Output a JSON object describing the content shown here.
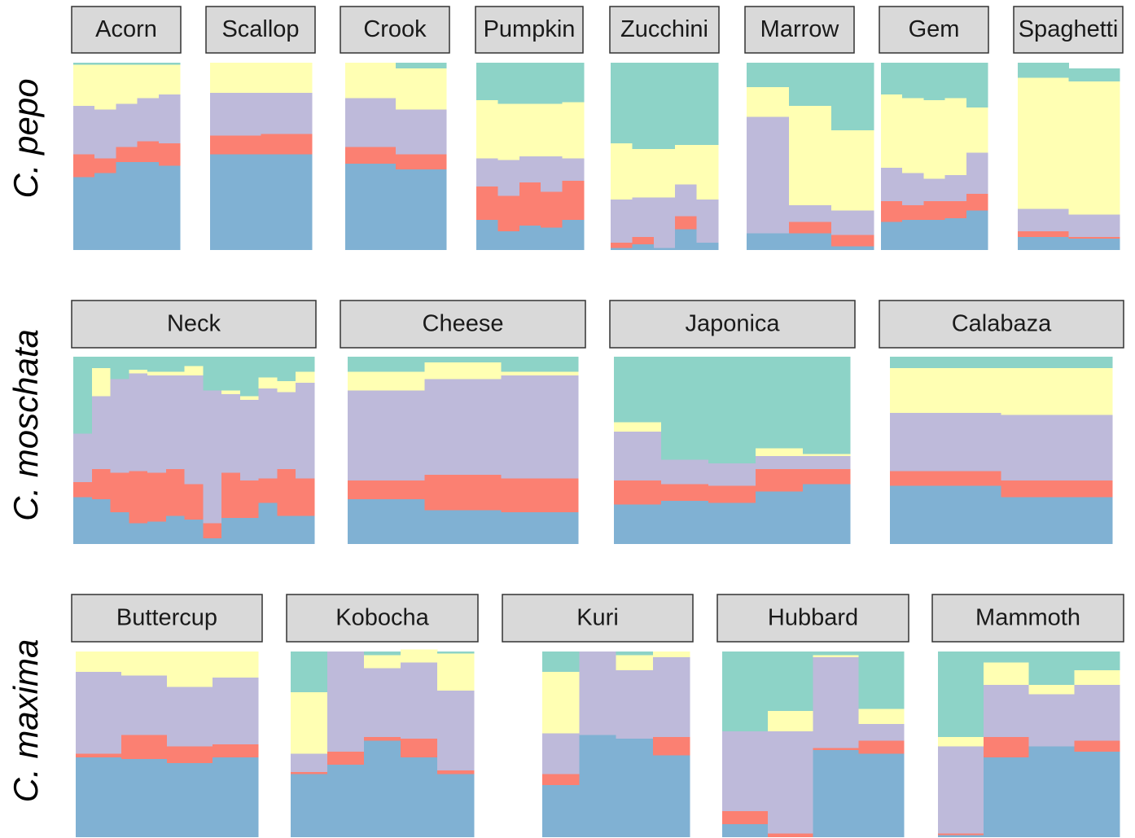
{
  "chart_data": {
    "type": "bar",
    "stacked": true,
    "colors": [
      "#80b1d3",
      "#fb8072",
      "#bebada",
      "#ffffb3",
      "#8dd3c7"
    ],
    "rows": [
      {
        "label": "C. pepo",
        "panels": [
          {
            "title": "Acorn",
            "bars": [
              [
                0.39,
                0.12,
                0.26,
                0.22,
                0.01
              ],
              [
                0.41,
                0.08,
                0.26,
                0.24,
                0.01
              ],
              [
                0.47,
                0.08,
                0.23,
                0.21,
                0.01
              ],
              [
                0.47,
                0.11,
                0.23,
                0.18,
                0.01
              ],
              [
                0.45,
                0.12,
                0.26,
                0.16,
                0.01
              ]
            ]
          },
          {
            "title": "Scallop",
            "bars": [
              [
                0.51,
                0.1,
                0.23,
                0.16,
                0
              ],
              [
                0.51,
                0.11,
                0.22,
                0.16,
                0
              ]
            ]
          },
          {
            "title": "Crook",
            "bars": [
              [
                0.46,
                0.09,
                0.26,
                0.19,
                0
              ],
              [
                0.43,
                0.08,
                0.24,
                0.22,
                0.03
              ]
            ]
          },
          {
            "title": "Pumpkin",
            "bars": [
              [
                0.16,
                0.18,
                0.15,
                0.31,
                0.2
              ],
              [
                0.1,
                0.19,
                0.19,
                0.3,
                0.22
              ],
              [
                0.13,
                0.23,
                0.14,
                0.28,
                0.22
              ],
              [
                0.12,
                0.19,
                0.19,
                0.28,
                0.22
              ],
              [
                0.16,
                0.21,
                0.12,
                0.3,
                0.21
              ]
            ]
          },
          {
            "title": "Zucchini",
            "bars": [
              [
                0.01,
                0.03,
                0.23,
                0.3,
                0.43
              ],
              [
                0.03,
                0.04,
                0.21,
                0.26,
                0.46
              ],
              [
                0.01,
                0,
                0.27,
                0.26,
                0.46
              ],
              [
                0.11,
                0.07,
                0.17,
                0.21,
                0.44
              ],
              [
                0.04,
                0,
                0.23,
                0.29,
                0.44
              ]
            ]
          },
          {
            "title": "Marrow",
            "bars": [
              [
                0.09,
                0,
                0.62,
                0.16,
                0.13
              ],
              [
                0.09,
                0.06,
                0.09,
                0.53,
                0.23
              ],
              [
                0.02,
                0.06,
                0.13,
                0.43,
                0.36
              ]
            ]
          },
          {
            "title": "Gem",
            "bars": [
              [
                0.15,
                0.11,
                0.18,
                0.39,
                0.17
              ],
              [
                0.16,
                0.08,
                0.17,
                0.4,
                0.19
              ],
              [
                0.16,
                0.1,
                0.12,
                0.42,
                0.2
              ],
              [
                0.17,
                0.09,
                0.14,
                0.41,
                0.19
              ],
              [
                0.21,
                0.09,
                0.22,
                0.24,
                0.24
              ]
            ]
          },
          {
            "title": "Spaghetti",
            "bars": [
              [
                0.07,
                0.03,
                0.12,
                0.7,
                0.08
              ],
              [
                0.06,
                0.01,
                0.12,
                0.71,
                0.07
              ]
            ]
          }
        ]
      },
      {
        "label": "C. moschata",
        "panels": [
          {
            "title": "Neck",
            "bars": [
              [
                0.25,
                0.08,
                0.26,
                0,
                0.41
              ],
              [
                0.24,
                0.16,
                0.39,
                0.15,
                0.06
              ],
              [
                0.17,
                0.21,
                0.5,
                0,
                0.12
              ],
              [
                0.11,
                0.28,
                0.52,
                0.02,
                0.07
              ],
              [
                0.12,
                0.26,
                0.52,
                0.02,
                0.08
              ],
              [
                0.15,
                0.25,
                0.5,
                0.02,
                0.08
              ],
              [
                0.13,
                0.19,
                0.58,
                0.05,
                0.05
              ],
              [
                0.03,
                0.08,
                0.71,
                0,
                0.18
              ],
              [
                0.14,
                0.24,
                0.42,
                0.02,
                0.18
              ],
              [
                0.14,
                0.2,
                0.43,
                0.02,
                0.21
              ],
              [
                0.22,
                0.13,
                0.48,
                0.06,
                0.11
              ],
              [
                0.15,
                0.25,
                0.41,
                0.06,
                0.13
              ],
              [
                0.15,
                0.2,
                0.51,
                0.06,
                0.08
              ]
            ]
          },
          {
            "title": "Cheese",
            "bars": [
              [
                0.24,
                0.1,
                0.48,
                0.1,
                0.08
              ],
              [
                0.18,
                0.19,
                0.51,
                0.09,
                0.03
              ],
              [
                0.17,
                0.18,
                0.55,
                0.02,
                0.08
              ]
            ]
          },
          {
            "title": "Japonica",
            "bars": [
              [
                0.21,
                0.13,
                0.26,
                0.05,
                0.35
              ],
              [
                0.23,
                0.09,
                0.13,
                0,
                0.55
              ],
              [
                0.22,
                0.09,
                0.12,
                0,
                0.57
              ],
              [
                0.28,
                0.12,
                0.07,
                0.04,
                0.49
              ],
              [
                0.32,
                0.08,
                0.07,
                0.01,
                0.52
              ]
            ]
          },
          {
            "title": "Calabaza",
            "bars": [
              [
                0.31,
                0.08,
                0.31,
                0.24,
                0.06
              ],
              [
                0.25,
                0.09,
                0.35,
                0.25,
                0.06
              ]
            ]
          }
        ]
      },
      {
        "label": "C. maxima",
        "panels": [
          {
            "title": "Buttercup",
            "bars": [
              [
                0.43,
                0.02,
                0.44,
                0.11,
                0
              ],
              [
                0.42,
                0.13,
                0.32,
                0.13,
                0
              ],
              [
                0.4,
                0.09,
                0.32,
                0.19,
                0
              ],
              [
                0.43,
                0.07,
                0.36,
                0.14,
                0
              ]
            ]
          },
          {
            "title": "Kobocha",
            "bars": [
              [
                0.34,
                0.01,
                0.1,
                0.33,
                0.22
              ],
              [
                0.39,
                0.07,
                0.54,
                0,
                0
              ],
              [
                0.52,
                0.02,
                0.37,
                0.07,
                0.02
              ],
              [
                0.43,
                0.1,
                0.41,
                0.07,
                0
              ],
              [
                0.34,
                0.02,
                0.43,
                0.2,
                0.01
              ]
            ]
          },
          {
            "title": "Kuri",
            "bars": [
              [
                0.28,
                0.06,
                0.22,
                0.33,
                0.11
              ],
              [
                0.55,
                0,
                0.45,
                0,
                0
              ],
              [
                0.53,
                0,
                0.37,
                0.08,
                0.02
              ],
              [
                0.44,
                0.1,
                0.43,
                0.03,
                0
              ]
            ]
          },
          {
            "title": "Hubbard",
            "bars": [
              [
                0.07,
                0.07,
                0.43,
                0,
                0.43
              ],
              [
                0,
                0.02,
                0.55,
                0.11,
                0.32
              ],
              [
                0.47,
                0.01,
                0.49,
                0.01,
                0.02
              ],
              [
                0.45,
                0.07,
                0.09,
                0.08,
                0.31
              ]
            ]
          },
          {
            "title": "Mammoth",
            "bars": [
              [
                0.01,
                0.01,
                0.47,
                0.05,
                0.46
              ],
              [
                0.43,
                0.11,
                0.28,
                0.12,
                0.06
              ],
              [
                0.49,
                0,
                0.28,
                0.05,
                0.18
              ],
              [
                0.46,
                0.06,
                0.3,
                0.08,
                0.1
              ]
            ]
          }
        ]
      }
    ]
  }
}
